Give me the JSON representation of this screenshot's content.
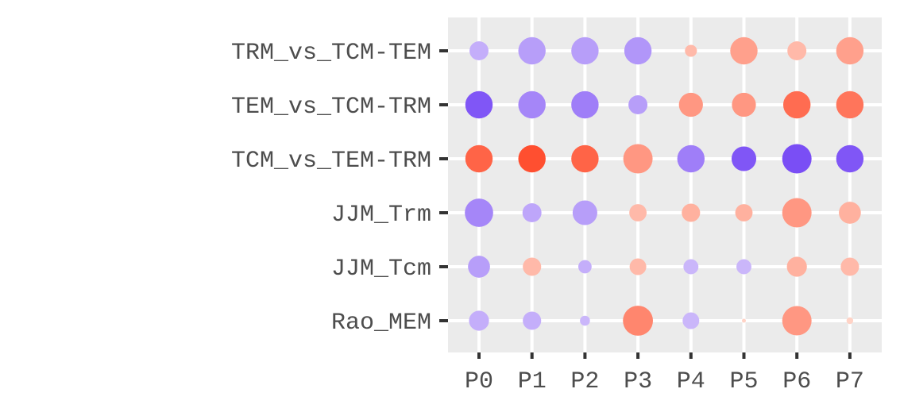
{
  "chart_data": {
    "type": "scatter",
    "subtype": "dot-plot",
    "title": "",
    "xlabel": "",
    "ylabel": "",
    "legend": "none",
    "grid": true,
    "x_categories": [
      "P0",
      "P1",
      "P2",
      "P3",
      "P4",
      "P5",
      "P6",
      "P7"
    ],
    "y_categories": [
      "TRM_vs_TCM-TEM",
      "TEM_vs_TCM-TRM",
      "TCM_vs_TEM-TRM",
      "JJM_Trm",
      "JJM_Tcm",
      "Rao_MEM"
    ],
    "encoding": {
      "color_value": "signed score, negative = purple, positive = red/orange",
      "size_value": "relative magnitude 0-1"
    },
    "colors": {
      "panel_bg": "#EBEBEB",
      "grid": "#FFFFFF",
      "negative_max": "#7446F5",
      "negative_min": "#D6C6FB",
      "positive_min": "#FFD3C6",
      "positive_max": "#FF4A2A",
      "tick": "#333333",
      "tick_label": "#4D4D4D"
    },
    "points": [
      {
        "y": "TRM_vs_TCM-TEM",
        "x": "P0",
        "size": 0.57,
        "color": -0.35
      },
      {
        "y": "TRM_vs_TCM-TEM",
        "x": "P1",
        "size": 0.82,
        "color": -0.45
      },
      {
        "y": "TRM_vs_TCM-TEM",
        "x": "P2",
        "size": 0.82,
        "color": -0.45
      },
      {
        "y": "TRM_vs_TCM-TEM",
        "x": "P3",
        "size": 0.82,
        "color": -0.5
      },
      {
        "y": "TRM_vs_TCM-TEM",
        "x": "P4",
        "size": 0.36,
        "color": 0.35
      },
      {
        "y": "TRM_vs_TCM-TEM",
        "x": "P5",
        "size": 0.82,
        "color": 0.5
      },
      {
        "y": "TRM_vs_TCM-TEM",
        "x": "P6",
        "size": 0.57,
        "color": 0.35
      },
      {
        "y": "TRM_vs_TCM-TEM",
        "x": "P7",
        "size": 0.82,
        "color": 0.5
      },
      {
        "y": "TEM_vs_TCM-TRM",
        "x": "P0",
        "size": 0.82,
        "color": -0.9
      },
      {
        "y": "TEM_vs_TCM-TRM",
        "x": "P1",
        "size": 0.82,
        "color": -0.6
      },
      {
        "y": "TEM_vs_TCM-TRM",
        "x": "P2",
        "size": 0.82,
        "color": -0.65
      },
      {
        "y": "TEM_vs_TCM-TRM",
        "x": "P3",
        "size": 0.57,
        "color": -0.45
      },
      {
        "y": "TEM_vs_TCM-TRM",
        "x": "P4",
        "size": 0.72,
        "color": 0.55
      },
      {
        "y": "TEM_vs_TCM-TRM",
        "x": "P5",
        "size": 0.72,
        "color": 0.55
      },
      {
        "y": "TEM_vs_TCM-TRM",
        "x": "P6",
        "size": 0.82,
        "color": 0.8
      },
      {
        "y": "TEM_vs_TCM-TRM",
        "x": "P7",
        "size": 0.82,
        "color": 0.75
      },
      {
        "y": "TCM_vs_TEM-TRM",
        "x": "P0",
        "size": 0.82,
        "color": 0.85
      },
      {
        "y": "TCM_vs_TEM-TRM",
        "x": "P1",
        "size": 0.82,
        "color": 0.97
      },
      {
        "y": "TCM_vs_TEM-TRM",
        "x": "P2",
        "size": 0.82,
        "color": 0.85
      },
      {
        "y": "TCM_vs_TEM-TRM",
        "x": "P3",
        "size": 0.88,
        "color": 0.55
      },
      {
        "y": "TCM_vs_TEM-TRM",
        "x": "P4",
        "size": 0.82,
        "color": -0.65
      },
      {
        "y": "TCM_vs_TEM-TRM",
        "x": "P5",
        "size": 0.74,
        "color": -0.9
      },
      {
        "y": "TCM_vs_TEM-TRM",
        "x": "P6",
        "size": 0.88,
        "color": -0.95
      },
      {
        "y": "TCM_vs_TEM-TRM",
        "x": "P7",
        "size": 0.82,
        "color": -0.9
      },
      {
        "y": "JJM_Trm",
        "x": "P0",
        "size": 0.85,
        "color": -0.6
      },
      {
        "y": "JJM_Trm",
        "x": "P1",
        "size": 0.57,
        "color": -0.4
      },
      {
        "y": "JJM_Trm",
        "x": "P2",
        "size": 0.74,
        "color": -0.45
      },
      {
        "y": "JJM_Trm",
        "x": "P3",
        "size": 0.52,
        "color": 0.35
      },
      {
        "y": "JJM_Trm",
        "x": "P4",
        "size": 0.55,
        "color": 0.4
      },
      {
        "y": "JJM_Trm",
        "x": "P5",
        "size": 0.52,
        "color": 0.4
      },
      {
        "y": "JJM_Trm",
        "x": "P6",
        "size": 0.88,
        "color": 0.55
      },
      {
        "y": "JJM_Trm",
        "x": "P7",
        "size": 0.66,
        "color": 0.4
      },
      {
        "y": "JJM_Tcm",
        "x": "P0",
        "size": 0.66,
        "color": -0.45
      },
      {
        "y": "JJM_Tcm",
        "x": "P1",
        "size": 0.55,
        "color": 0.35
      },
      {
        "y": "JJM_Tcm",
        "x": "P2",
        "size": 0.4,
        "color": -0.35
      },
      {
        "y": "JJM_Tcm",
        "x": "P3",
        "size": 0.5,
        "color": 0.35
      },
      {
        "y": "JJM_Tcm",
        "x": "P4",
        "size": 0.45,
        "color": -0.3
      },
      {
        "y": "JJM_Tcm",
        "x": "P5",
        "size": 0.45,
        "color": -0.3
      },
      {
        "y": "JJM_Tcm",
        "x": "P6",
        "size": 0.6,
        "color": 0.4
      },
      {
        "y": "JJM_Tcm",
        "x": "P7",
        "size": 0.55,
        "color": 0.35
      },
      {
        "y": "Rao_MEM",
        "x": "P0",
        "size": 0.6,
        "color": -0.35
      },
      {
        "y": "Rao_MEM",
        "x": "P1",
        "size": 0.55,
        "color": -0.35
      },
      {
        "y": "Rao_MEM",
        "x": "P2",
        "size": 0.3,
        "color": -0.3
      },
      {
        "y": "Rao_MEM",
        "x": "P3",
        "size": 0.9,
        "color": 0.65
      },
      {
        "y": "Rao_MEM",
        "x": "P4",
        "size": 0.5,
        "color": -0.3
      },
      {
        "y": "Rao_MEM",
        "x": "P5",
        "size": 0.1,
        "color": 0.2
      },
      {
        "y": "Rao_MEM",
        "x": "P6",
        "size": 0.88,
        "color": 0.55
      },
      {
        "y": "Rao_MEM",
        "x": "P7",
        "size": 0.2,
        "color": 0.2
      }
    ]
  }
}
